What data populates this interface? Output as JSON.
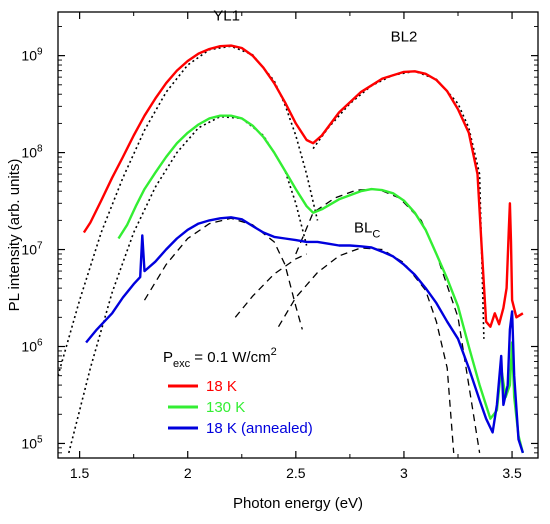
{
  "chart_data": {
    "type": "line",
    "xlabel": "Photon energy (eV)",
    "ylabel": "PL intensity (arb. units)",
    "xlim": [
      1.4,
      3.62
    ],
    "ylog": true,
    "ylim_log10": [
      4.85,
      9.45
    ],
    "x_ticks": [
      1.5,
      2,
      2.5,
      3,
      3.5
    ],
    "y_ticks": [
      {
        "exp": 5,
        "base": "10",
        "sup": "5"
      },
      {
        "exp": 6,
        "base": "10",
        "sup": "6"
      },
      {
        "exp": 7,
        "base": "10",
        "sup": "7"
      },
      {
        "exp": 8,
        "base": "10",
        "sup": "8"
      },
      {
        "exp": 9,
        "base": "10",
        "sup": "9"
      }
    ],
    "annotations": [
      {
        "id": "yl1",
        "text": "YL1",
        "sub": "",
        "x": 2.18,
        "y": 2300000000.0
      },
      {
        "id": "bl2",
        "text": "BL2",
        "sub": "",
        "x": 3.0,
        "y": 1400000000.0
      },
      {
        "id": "blc",
        "text": "BL",
        "sub": "C",
        "x": 2.83,
        "y": 15000000.0
      }
    ],
    "legend": {
      "placement": "bottom-left",
      "title_main": "P",
      "title_sub": "exc",
      "title_rest": " = 0.1 W/cm",
      "title_sup": "2"
    },
    "series": [
      {
        "name": "18 K",
        "color": "#ff0000",
        "points": [
          [
            1.52,
            15000000.0
          ],
          [
            1.55,
            19000000.0
          ],
          [
            1.6,
            32000000.0
          ],
          [
            1.65,
            55000000.0
          ],
          [
            1.7,
            90000000.0
          ],
          [
            1.75,
            150000000.0
          ],
          [
            1.8,
            240000000.0
          ],
          [
            1.85,
            360000000.0
          ],
          [
            1.9,
            520000000.0
          ],
          [
            1.95,
            700000000.0
          ],
          [
            2.0,
            880000000.0
          ],
          [
            2.05,
            1050000000.0
          ],
          [
            2.1,
            1170000000.0
          ],
          [
            2.15,
            1250000000.0
          ],
          [
            2.2,
            1270000000.0
          ],
          [
            2.25,
            1200000000.0
          ],
          [
            2.3,
            1000000000.0
          ],
          [
            2.35,
            750000000.0
          ],
          [
            2.4,
            520000000.0
          ],
          [
            2.45,
            330000000.0
          ],
          [
            2.5,
            200000000.0
          ],
          [
            2.55,
            135000000.0
          ],
          [
            2.58,
            125000000.0
          ],
          [
            2.62,
            150000000.0
          ],
          [
            2.7,
            260000000.0
          ],
          [
            2.8,
            420000000.0
          ],
          [
            2.9,
            580000000.0
          ],
          [
            3.0,
            680000000.0
          ],
          [
            3.05,
            690000000.0
          ],
          [
            3.1,
            650000000.0
          ],
          [
            3.15,
            560000000.0
          ],
          [
            3.2,
            430000000.0
          ],
          [
            3.25,
            280000000.0
          ],
          [
            3.3,
            160000000.0
          ],
          [
            3.34,
            60000000.0
          ],
          [
            3.36,
            10000000.0
          ],
          [
            3.38,
            1800000.0
          ],
          [
            3.4,
            1600000.0
          ],
          [
            3.42,
            2200000.0
          ],
          [
            3.44,
            1700000.0
          ],
          [
            3.46,
            2500000.0
          ],
          [
            3.475,
            4000000.0
          ],
          [
            3.485,
            16000000.0
          ],
          [
            3.49,
            30000000.0
          ],
          [
            3.495,
            12000000.0
          ],
          [
            3.5,
            3000000.0
          ],
          [
            3.52,
            2000000.0
          ],
          [
            3.55,
            2200000.0
          ]
        ]
      },
      {
        "name": "130 K",
        "color": "#33ee33",
        "points": [
          [
            1.68,
            13000000.0
          ],
          [
            1.72,
            18000000.0
          ],
          [
            1.76,
            28000000.0
          ],
          [
            1.8,
            42000000.0
          ],
          [
            1.85,
            62000000.0
          ],
          [
            1.9,
            90000000.0
          ],
          [
            1.95,
            125000000.0
          ],
          [
            2.0,
            160000000.0
          ],
          [
            2.05,
            195000000.0
          ],
          [
            2.1,
            225000000.0
          ],
          [
            2.15,
            240000000.0
          ],
          [
            2.2,
            240000000.0
          ],
          [
            2.25,
            225000000.0
          ],
          [
            2.3,
            190000000.0
          ],
          [
            2.35,
            145000000.0
          ],
          [
            2.4,
            100000000.0
          ],
          [
            2.45,
            65000000.0
          ],
          [
            2.5,
            42000000.0
          ],
          [
            2.55,
            28000000.0
          ],
          [
            2.58,
            24000000.0
          ],
          [
            2.62,
            26000000.0
          ],
          [
            2.7,
            33000000.0
          ],
          [
            2.8,
            40000000.0
          ],
          [
            2.85,
            42000000.0
          ],
          [
            2.9,
            41000000.0
          ],
          [
            2.95,
            38000000.0
          ],
          [
            3.0,
            32000000.0
          ],
          [
            3.05,
            24000000.0
          ],
          [
            3.1,
            16000000.0
          ],
          [
            3.15,
            9000000.0
          ],
          [
            3.2,
            5000000.0
          ],
          [
            3.25,
            2600000.0
          ],
          [
            3.3,
            1000000.0
          ],
          [
            3.35,
            400000.0
          ],
          [
            3.4,
            180000.0
          ],
          [
            3.43,
            220000.0
          ],
          [
            3.45,
            600000.0
          ],
          [
            3.47,
            300000.0
          ],
          [
            3.49,
            400000.0
          ],
          [
            3.5,
            1100000.0
          ],
          [
            3.51,
            300000.0
          ],
          [
            3.53,
            120000.0
          ],
          [
            3.55,
            80000.0
          ]
        ]
      },
      {
        "name": "18 K (annealed)",
        "color": "#0000dd",
        "points": [
          [
            1.53,
            1100000.0
          ],
          [
            1.58,
            1500000.0
          ],
          [
            1.65,
            2200000.0
          ],
          [
            1.7,
            3200000.0
          ],
          [
            1.75,
            4400000.0
          ],
          [
            1.78,
            5200000.0
          ],
          [
            1.79,
            14000000.0
          ],
          [
            1.8,
            6000000.0
          ],
          [
            1.85,
            7500000.0
          ],
          [
            1.9,
            10000000.0
          ],
          [
            1.95,
            13000000.0
          ],
          [
            2.0,
            16000000.0
          ],
          [
            2.05,
            18500000.0
          ],
          [
            2.1,
            20000000.0
          ],
          [
            2.15,
            21000000.0
          ],
          [
            2.2,
            21500000.0
          ],
          [
            2.25,
            20500000.0
          ],
          [
            2.3,
            17500000.0
          ],
          [
            2.35,
            15000000.0
          ],
          [
            2.4,
            13500000.0
          ],
          [
            2.45,
            13000000.0
          ],
          [
            2.5,
            12500000.0
          ],
          [
            2.55,
            12000000.0
          ],
          [
            2.6,
            12000000.0
          ],
          [
            2.65,
            11500000.0
          ],
          [
            2.7,
            11000000.0
          ],
          [
            2.75,
            11000000.0
          ],
          [
            2.8,
            10800000.0
          ],
          [
            2.85,
            10500000.0
          ],
          [
            2.9,
            9500000.0
          ],
          [
            2.95,
            8500000.0
          ],
          [
            3.0,
            7000000.0
          ],
          [
            3.05,
            5500000.0
          ],
          [
            3.1,
            4000000.0
          ],
          [
            3.15,
            2800000.0
          ],
          [
            3.2,
            1800000.0
          ],
          [
            3.25,
            1200000.0
          ],
          [
            3.3,
            600000.0
          ],
          [
            3.35,
            280000.0
          ],
          [
            3.38,
            180000.0
          ],
          [
            3.41,
            130000.0
          ],
          [
            3.43,
            250000.0
          ],
          [
            3.45,
            800000.0
          ],
          [
            3.46,
            250000.0
          ],
          [
            3.48,
            400000.0
          ],
          [
            3.49,
            1500000.0
          ],
          [
            3.5,
            2300000.0
          ],
          [
            3.51,
            500000.0
          ],
          [
            3.53,
            110000.0
          ],
          [
            3.55,
            80000.0
          ]
        ]
      }
    ],
    "fits": [
      {
        "style": "dotted",
        "points": [
          [
            1.4,
            500000.0
          ],
          [
            1.5,
            3000000.0
          ],
          [
            1.6,
            15000000.0
          ],
          [
            1.7,
            55000000.0
          ],
          [
            1.8,
            170000000.0
          ],
          [
            1.9,
            420000000.0
          ],
          [
            2.0,
            800000000.0
          ],
          [
            2.1,
            1150000000.0
          ],
          [
            2.2,
            1250000000.0
          ],
          [
            2.3,
            1020000000.0
          ],
          [
            2.4,
            550000000.0
          ],
          [
            2.45,
            310000000.0
          ],
          [
            2.5,
            150000000.0
          ],
          [
            2.55,
            60000000.0
          ],
          [
            2.6,
            20000000.0
          ]
        ]
      },
      {
        "style": "dotted",
        "points": [
          [
            2.58,
            110000000.0
          ],
          [
            2.65,
            180000000.0
          ],
          [
            2.75,
            320000000.0
          ],
          [
            2.85,
            490000000.0
          ],
          [
            2.95,
            630000000.0
          ],
          [
            3.05,
            690000000.0
          ],
          [
            3.15,
            570000000.0
          ],
          [
            3.25,
            320000000.0
          ],
          [
            3.3,
            180000000.0
          ],
          [
            3.35,
            60000000.0
          ],
          [
            3.37,
            1200000.0
          ]
        ]
      },
      {
        "style": "dotted",
        "points": [
          [
            1.45,
            80000.0
          ],
          [
            1.55,
            600000.0
          ],
          [
            1.65,
            3600000.0
          ],
          [
            1.75,
            15000000.0
          ],
          [
            1.85,
            44000000.0
          ],
          [
            1.95,
            100000000.0
          ],
          [
            2.05,
            180000000.0
          ],
          [
            2.15,
            235000000.0
          ],
          [
            2.25,
            225000000.0
          ],
          [
            2.35,
            150000000.0
          ],
          [
            2.45,
            65000000.0
          ],
          [
            2.5,
            30000000.0
          ],
          [
            2.55,
            11000000.0
          ]
        ]
      },
      {
        "style": "dashed",
        "points": [
          [
            2.5,
            9000000.0
          ],
          [
            2.58,
            24000000.0
          ],
          [
            2.68,
            34000000.0
          ],
          [
            2.78,
            41000000.0
          ],
          [
            2.88,
            42000000.0
          ],
          [
            2.98,
            34000000.0
          ],
          [
            3.08,
            20000000.0
          ],
          [
            3.15,
            9000000.0
          ],
          [
            3.25,
            2000000.0
          ],
          [
            3.3,
            400000.0
          ],
          [
            3.35,
            80000.0
          ]
        ]
      },
      {
        "style": "dashed",
        "points": [
          [
            1.8,
            3000000.0
          ],
          [
            1.9,
            7000000.0
          ],
          [
            2.0,
            13000000.0
          ],
          [
            2.1,
            18500000.0
          ],
          [
            2.2,
            21000000.0
          ],
          [
            2.3,
            18000000.0
          ],
          [
            2.4,
            12000000.0
          ],
          [
            2.45,
            7000000.0
          ],
          [
            2.5,
            2600000.0
          ],
          [
            2.53,
            1500000.0
          ]
        ]
      },
      {
        "style": "dashed",
        "points": [
          [
            2.22,
            2000000.0
          ],
          [
            2.3,
            3300000.0
          ],
          [
            2.4,
            5600000.0
          ],
          [
            2.5,
            8000000.0
          ],
          [
            2.55,
            9000000.0
          ]
        ]
      },
      {
        "style": "dashed",
        "points": [
          [
            2.42,
            1600000.0
          ],
          [
            2.5,
            3200000.0
          ],
          [
            2.6,
            5800000.0
          ],
          [
            2.7,
            8600000.0
          ],
          [
            2.8,
            10400000.0
          ],
          [
            2.9,
            10000000.0
          ],
          [
            3.0,
            7300000.0
          ],
          [
            3.1,
            3800000.0
          ],
          [
            3.15,
            1800000.0
          ],
          [
            3.2,
            600000.0
          ],
          [
            3.23,
            80000.0
          ]
        ]
      }
    ]
  }
}
